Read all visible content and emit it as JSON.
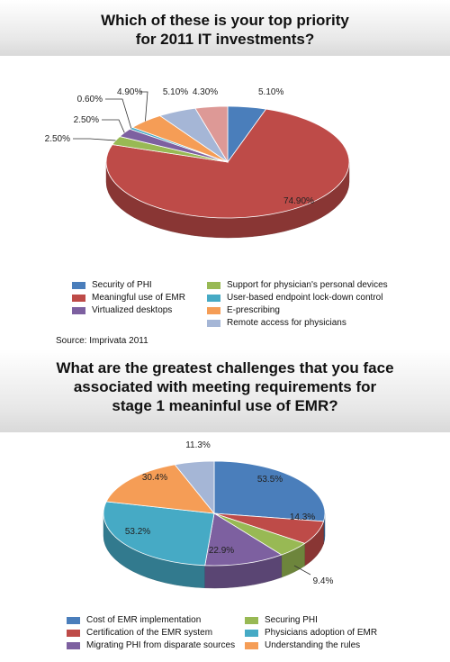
{
  "chart_data": [
    {
      "type": "pie",
      "title": "Which of these is your top priority\nfor 2011 IT investments?",
      "slices": [
        {
          "label": "Security of PHI",
          "value": 5.1,
          "display": "5.10%",
          "color": "#4a7ebb"
        },
        {
          "label": "Meaningful use of EMR",
          "value": 74.9,
          "display": "74.90%",
          "color": "#be4b48"
        },
        {
          "label": "Support for physician's personal devices",
          "value": 2.5,
          "display": "2.50%",
          "color": "#98b954"
        },
        {
          "label": "Virtualized desktops",
          "value": 2.5,
          "display": "2.50%",
          "color": "#7d60a0"
        },
        {
          "label": "User-based endpoint lock-down control",
          "value": 0.6,
          "display": "0.60%",
          "color": "#46aac5"
        },
        {
          "label": "E-prescribing",
          "value": 4.9,
          "display": "4.90%",
          "color": "#f59d56"
        },
        {
          "label": "Remote access for physicians",
          "value": 5.1,
          "display": "5.10%",
          "color": "#a5b6d6"
        },
        {
          "label": "",
          "value": 4.3,
          "display": "4.30%",
          "color": "#dd9996"
        }
      ],
      "legend_order": [
        0,
        2,
        1,
        4,
        3,
        5,
        6
      ],
      "source": "Source: Imprivata 2011"
    },
    {
      "type": "pie",
      "title": "What are the greatest challenges that you face\nassociated with meeting requirements for\nstage 1 meaninful use of EMR?",
      "slices": [
        {
          "label": "Cost of EMR implementation",
          "value": 53.5,
          "display": "53.5%",
          "color": "#4a7ebb"
        },
        {
          "label": "Certification of the EMR system",
          "value": 14.3,
          "display": "14.3%",
          "color": "#be4b48"
        },
        {
          "label": "Securing PHI",
          "value": 9.4,
          "display": "9.4%",
          "color": "#98b954"
        },
        {
          "label": "Migrating PHI from disparate sources",
          "value": 22.9,
          "display": "22.9%",
          "color": "#7d60a0"
        },
        {
          "label": "Physicians adoption of EMR",
          "value": 53.2,
          "display": "53.2%",
          "color": "#46aac5"
        },
        {
          "label": "Understanding the rules",
          "value": 30.4,
          "display": "30.4%",
          "color": "#f59d56"
        },
        {
          "label": "",
          "value": 11.3,
          "display": "11.3%",
          "color": "#a5b6d6"
        }
      ],
      "legend_order": [
        0,
        2,
        1,
        4,
        3,
        5
      ]
    }
  ]
}
